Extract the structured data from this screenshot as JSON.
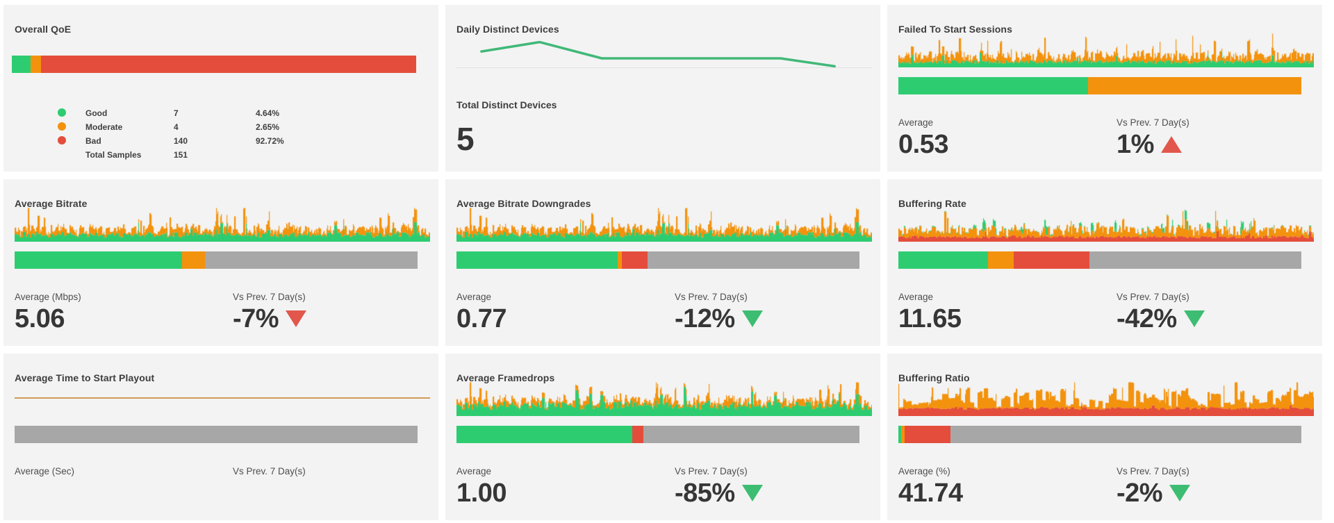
{
  "colors": {
    "green": "#2ecc71",
    "orange": "#f3920d",
    "red": "#e44d3c",
    "gray": "#a7a7a7",
    "tan": "#cf9b52",
    "trend_red": "#e2574c",
    "trend_green": "#3dbd72",
    "line_green": "#41b878",
    "panel_bg": "#f3f3f3",
    "title_text": "#3d3d3d",
    "label_text": "#4e4e4e",
    "value_text": "#363636",
    "axis_line": "#e2e2e2"
  },
  "chart_data": [
    {
      "type": "bar",
      "title": "Overall QoE",
      "bar_segments": [
        {
          "label": "Good",
          "color": "green",
          "pct": 4.64
        },
        {
          "label": "Moderate",
          "color": "orange",
          "pct": 2.65
        },
        {
          "label": "Bad",
          "color": "red",
          "pct": 92.71
        }
      ],
      "legend": [
        {
          "dot": "green",
          "label": "Good",
          "count": "7",
          "pct": "4.64%"
        },
        {
          "dot": "orange",
          "label": "Moderate",
          "count": "4",
          "pct": "2.65%"
        },
        {
          "dot": "red",
          "label": "Bad",
          "count": "140",
          "pct": "92.72%"
        },
        {
          "dot": "",
          "label": "Total Samples",
          "count": "151",
          "pct": ""
        }
      ]
    },
    {
      "type": "line",
      "title": "Daily Distinct Devices",
      "line": {
        "color": "line_green",
        "x": [
          0.06,
          0.2,
          0.35,
          0.78,
          0.91
        ],
        "y": [
          0.56,
          0.3,
          0.75,
          0.75,
          0.97
        ]
      },
      "metric_label": "Total Distinct Devices",
      "metric_value": "5"
    },
    {
      "type": "kpi",
      "title": "Failed To Start Sessions",
      "sparkline": {
        "seed": 11,
        "layers": [
          {
            "color": "green",
            "base": 0.16,
            "noise": 0.05,
            "spike": 0.05,
            "amp": 0.3,
            "hold": 3
          },
          {
            "color": "orange",
            "base": 0.16,
            "noise": 0.14,
            "spike": 0.12,
            "amp": 0.55,
            "hold": 3
          }
        ]
      },
      "bar_segments": [
        {
          "color": "green",
          "pct": 47
        },
        {
          "color": "orange",
          "pct": 53
        }
      ],
      "left_label": "Average",
      "left_value": "0.53",
      "right_label": "Vs Prev. 7 Day(s)",
      "right_value": "1%",
      "trend": "up",
      "trend_color": "trend_red"
    },
    {
      "type": "kpi",
      "title": "Average Bitrate",
      "sparkline": {
        "seed": 42,
        "layers": [
          {
            "color": "green",
            "base": 0.2,
            "noise": 0.08,
            "spike": 0.06,
            "amp": 0.45,
            "hold": 4
          },
          {
            "color": "orange",
            "base": 0.14,
            "noise": 0.14,
            "spike": 0.1,
            "amp": 0.55,
            "hold": 3
          }
        ]
      },
      "bar_segments": [
        {
          "color": "green",
          "pct": 41.5
        },
        {
          "color": "orange",
          "pct": 5.8
        },
        {
          "color": "gray",
          "pct": 52.7
        }
      ],
      "left_label": "Average (Mbps)",
      "left_value": "5.06",
      "right_label": "Vs Prev. 7 Day(s)",
      "right_value": "-7%",
      "trend": "down",
      "trend_color": "trend_red"
    },
    {
      "type": "kpi",
      "title": "Average Bitrate Downgrades",
      "sparkline": {
        "seed": 42,
        "layers": [
          {
            "color": "green",
            "base": 0.2,
            "noise": 0.08,
            "spike": 0.06,
            "amp": 0.45,
            "hold": 4
          },
          {
            "color": "orange",
            "base": 0.14,
            "noise": 0.14,
            "spike": 0.1,
            "amp": 0.55,
            "hold": 3
          }
        ]
      },
      "bar_segments": [
        {
          "color": "green",
          "pct": 40.0
        },
        {
          "color": "orange",
          "pct": 1.0
        },
        {
          "color": "red",
          "pct": 6.5
        },
        {
          "color": "gray",
          "pct": 52.5
        }
      ],
      "left_label": "Average",
      "left_value": "0.77",
      "right_label": "Vs Prev. 7 Day(s)",
      "right_value": "-12%",
      "trend": "down",
      "trend_color": "trend_green"
    },
    {
      "type": "kpi",
      "title": "Buffering Rate",
      "sparkline": {
        "seed": 42,
        "layers": [
          {
            "color": "red",
            "base": 0.14,
            "noise": 0.04,
            "spike": 0.02,
            "amp": 0.2,
            "hold": 4
          },
          {
            "color": "orange",
            "base": 0.18,
            "noise": 0.14,
            "spike": 0.1,
            "amp": 0.55,
            "hold": 3
          },
          {
            "color": "green",
            "base": 0.0,
            "noise": 0.03,
            "spike": 0.07,
            "amp": 0.3,
            "hold": 5,
            "min": 0
          }
        ]
      },
      "bar_segments": [
        {
          "color": "green",
          "pct": 22.3
        },
        {
          "color": "orange",
          "pct": 6.4
        },
        {
          "color": "red",
          "pct": 18.7
        },
        {
          "color": "gray",
          "pct": 52.6
        }
      ],
      "left_label": "Average",
      "left_value": "11.65",
      "right_label": "Vs Prev. 7 Day(s)",
      "right_value": "-42%",
      "trend": "down",
      "trend_color": "trend_green"
    },
    {
      "type": "kpi_flat",
      "title": "Average Time to Start Playout",
      "sparkline": {
        "flat": true,
        "color": "tan"
      },
      "bar_segments": [
        {
          "color": "gray",
          "pct": 100
        }
      ],
      "left_label": "Average (Sec)",
      "left_value": "",
      "right_label": "Vs Prev. 7 Day(s)",
      "right_value": "",
      "trend": null,
      "trend_color": null
    },
    {
      "type": "kpi",
      "title": "Average Framedrops",
      "sparkline": {
        "seed": 42,
        "layers": [
          {
            "color": "green",
            "base": 0.3,
            "noise": 0.12,
            "spike": 0.08,
            "amp": 0.45,
            "hold": 4
          },
          {
            "color": "orange",
            "base": 0.12,
            "noise": 0.12,
            "spike": 0.1,
            "amp": 0.5,
            "hold": 3
          }
        ]
      },
      "bar_segments": [
        {
          "color": "green",
          "pct": 43.7
        },
        {
          "color": "red",
          "pct": 2.6
        },
        {
          "color": "gray",
          "pct": 53.7
        }
      ],
      "left_label": "Average",
      "left_value": "1.00",
      "right_label": "Vs Prev. 7 Day(s)",
      "right_value": "-85%",
      "trend": "down",
      "trend_color": "trend_green"
    },
    {
      "type": "kpi",
      "title": "Buffering Ratio",
      "sparkline": {
        "seed": 99,
        "layers": [
          {
            "color": "red",
            "base": 0.22,
            "noise": 0.04,
            "spike": 0.03,
            "amp": 0.15,
            "hold": 6
          },
          {
            "color": "orange",
            "base": 0.28,
            "noise": 0.3,
            "spike": 0.2,
            "amp": 0.4,
            "hold": 8
          }
        ]
      },
      "bar_segments": [
        {
          "color": "green",
          "pct": 0.7
        },
        {
          "color": "orange",
          "pct": 0.9
        },
        {
          "color": "red",
          "pct": 11.3
        },
        {
          "color": "gray",
          "pct": 87.1
        }
      ],
      "left_label": "Average (%)",
      "left_value": "41.74",
      "right_label": "Vs Prev. 7 Day(s)",
      "right_value": "-2%",
      "trend": "down",
      "trend_color": "trend_green"
    }
  ]
}
